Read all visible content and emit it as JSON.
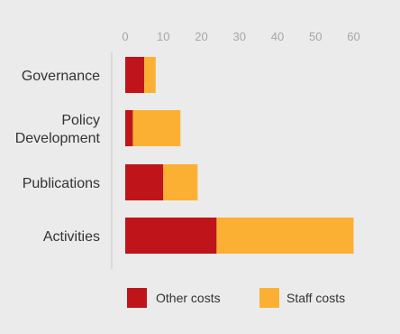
{
  "chart_data": {
    "type": "bar",
    "orientation": "horizontal",
    "stacked": true,
    "categories": [
      {
        "label_lines": [
          "Governance"
        ]
      },
      {
        "label_lines": [
          "Policy",
          "Development"
        ]
      },
      {
        "label_lines": [
          "Publications"
        ]
      },
      {
        "label_lines": [
          "Activities"
        ]
      }
    ],
    "series": [
      {
        "name": "Other costs",
        "color": "#c0141b",
        "values": [
          5,
          2,
          10,
          24
        ]
      },
      {
        "name": "Staff costs",
        "color": "#fbb034",
        "values": [
          3,
          12.5,
          9,
          36
        ]
      }
    ],
    "xaxis": {
      "position": "top",
      "ticks": [
        "0",
        "10",
        "20",
        "30",
        "40",
        "50",
        "60"
      ],
      "range": [
        0,
        60
      ]
    },
    "grid": false,
    "legend": {
      "position": "bottom"
    }
  },
  "colors": {
    "background": "#ebebeb",
    "axis": "#c8c8c8",
    "tick_text": "#a6a6a6",
    "label_text": "#333333"
  }
}
